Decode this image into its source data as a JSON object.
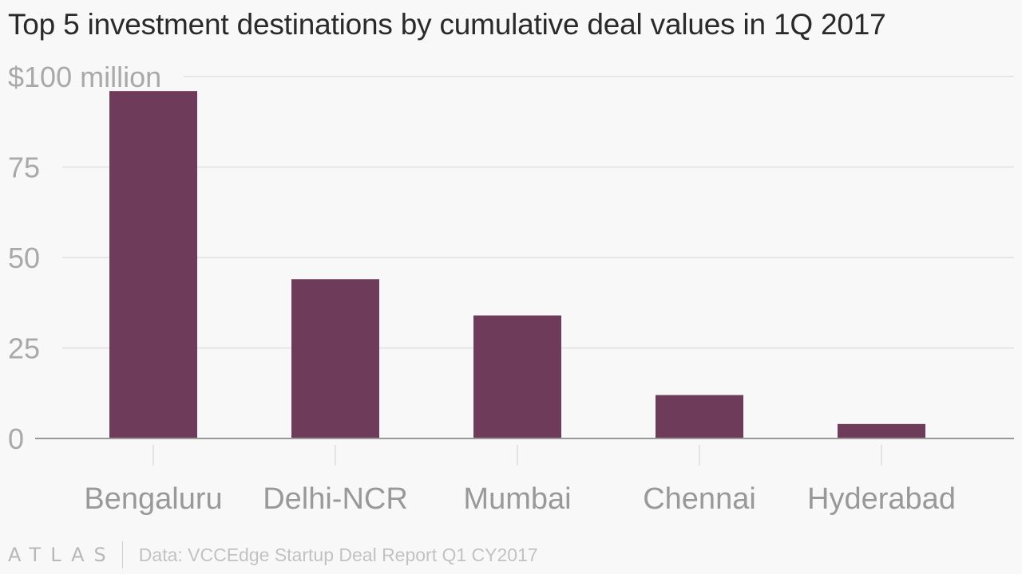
{
  "title": "Top 5 investment destinations by cumulative deal values in 1Q 2017",
  "source": "Data: VCCEdge Startup Deal Report Q1 CY2017",
  "brand": "ATLAS",
  "colors": {
    "bar": "#6e3b5a",
    "grid": "#e6e6e6",
    "axis": "#999999",
    "tick_text": "#a9a9a9",
    "background": "#f8f8f8"
  },
  "chart_data": {
    "type": "bar",
    "categories": [
      "Bengaluru",
      "Delhi-NCR",
      "Mumbai",
      "Chennai",
      "Hyderabad"
    ],
    "values": [
      96,
      44,
      34,
      12,
      4
    ],
    "ylim": [
      0,
      100
    ],
    "yticks": [
      0,
      25,
      50,
      75,
      100
    ],
    "ytick_labels": [
      "0",
      "25",
      "50",
      "75",
      "$100 million"
    ],
    "grid": true,
    "title": "Top 5 investment destinations by cumulative deal values in 1Q 2017",
    "xlabel": "",
    "ylabel": ""
  }
}
